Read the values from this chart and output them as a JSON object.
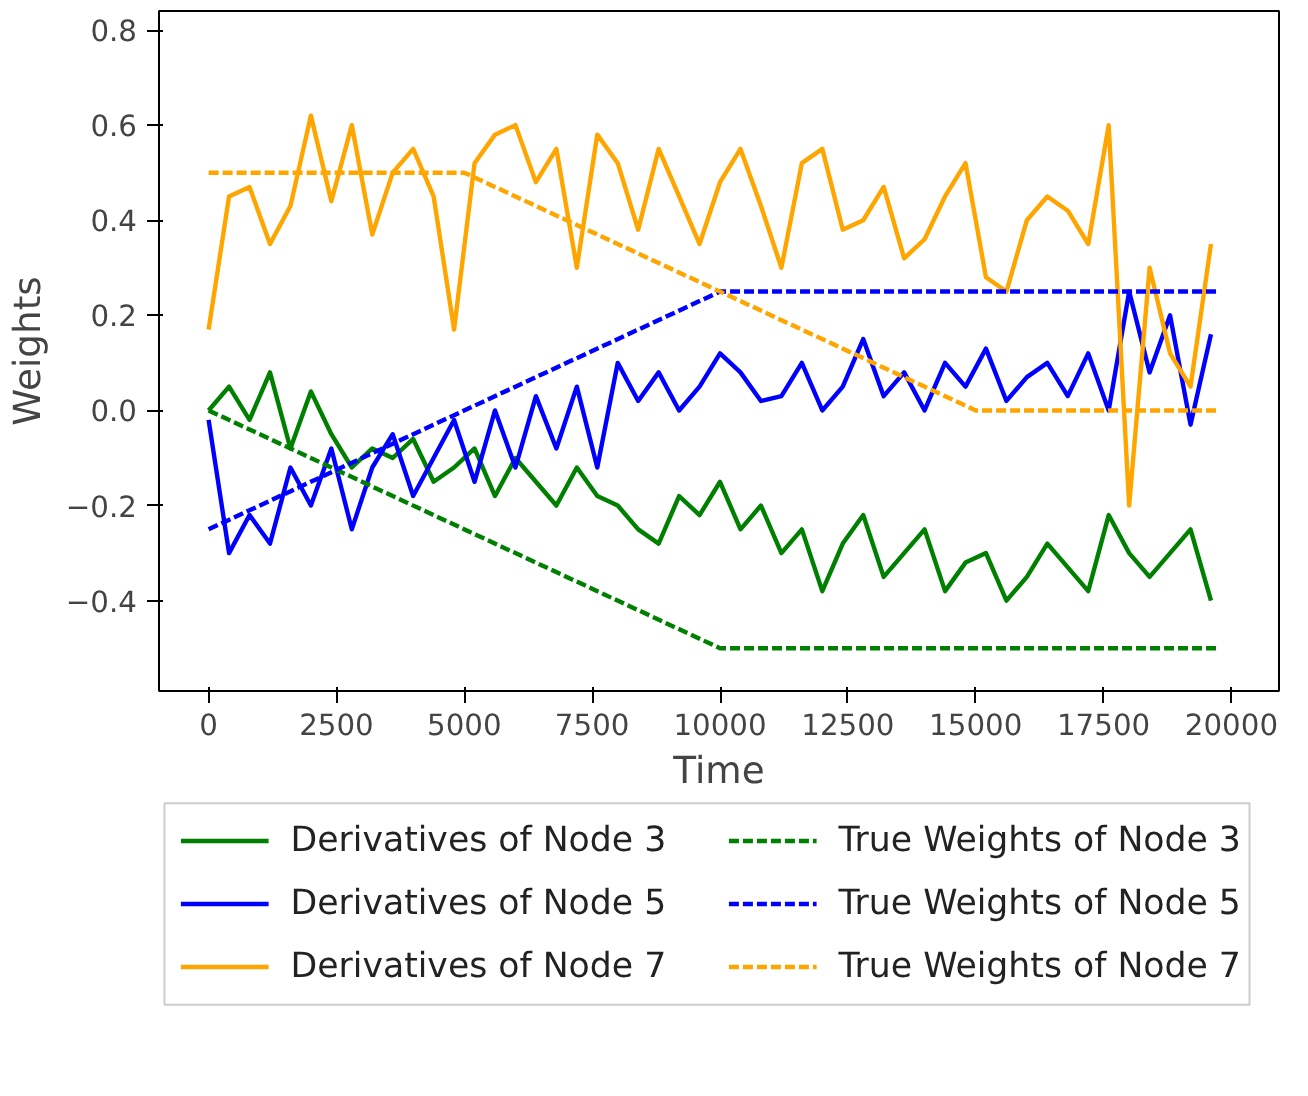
{
  "chart_data": {
    "type": "line",
    "xlabel": "Time",
    "ylabel": "Weights",
    "xlim": [
      -970,
      20930
    ],
    "ylim": [
      -0.59,
      0.84
    ],
    "xticks": [
      0,
      2500,
      5000,
      7500,
      10000,
      12500,
      15000,
      17500,
      20000
    ],
    "yticks": [
      {
        "value": -0.4,
        "label": "−0.4"
      },
      {
        "value": -0.2,
        "label": "−0.2"
      },
      {
        "value": 0,
        "label": "0.0"
      },
      {
        "value": 0.2,
        "label": "0.2"
      },
      {
        "value": 0.4,
        "label": "0.4"
      },
      {
        "value": 0.6,
        "label": "0.6"
      },
      {
        "value": 0.8,
        "label": "0.8"
      }
    ],
    "grid": false,
    "legend": "bottom",
    "x": [
      0,
      400,
      800,
      1200,
      1600,
      2000,
      2400,
      2800,
      3200,
      3600,
      4000,
      4400,
      4800,
      5200,
      5600,
      6000,
      6400,
      6800,
      7200,
      7600,
      8000,
      8400,
      8800,
      9200,
      9600,
      10000,
      10400,
      10800,
      11200,
      11600,
      12000,
      12400,
      12800,
      13200,
      13600,
      14000,
      14400,
      14800,
      15200,
      15600,
      16000,
      16400,
      16800,
      17200,
      17600,
      18000,
      18400,
      18800,
      19200,
      19600
    ],
    "series": [
      {
        "name": "Derivatives of Node 3",
        "color": "#008000",
        "line_style": "solid",
        "values": [
          0.0,
          0.05,
          -0.02,
          0.08,
          -0.08,
          0.04,
          -0.05,
          -0.12,
          -0.08,
          -0.1,
          -0.06,
          -0.15,
          -0.12,
          -0.08,
          -0.18,
          -0.1,
          -0.15,
          -0.2,
          -0.12,
          -0.18,
          -0.2,
          -0.25,
          -0.28,
          -0.18,
          -0.22,
          -0.15,
          -0.25,
          -0.2,
          -0.3,
          -0.25,
          -0.38,
          -0.28,
          -0.22,
          -0.35,
          -0.3,
          -0.25,
          -0.38,
          -0.32,
          -0.3,
          -0.4,
          -0.35,
          -0.28,
          -0.33,
          -0.38,
          -0.22,
          -0.3,
          -0.35,
          -0.3,
          -0.25,
          -0.4
        ]
      },
      {
        "name": "Derivatives of Node 5",
        "color": "#0000ff",
        "line_style": "solid",
        "values": [
          -0.02,
          -0.3,
          -0.22,
          -0.28,
          -0.12,
          -0.2,
          -0.08,
          -0.25,
          -0.12,
          -0.05,
          -0.18,
          -0.1,
          -0.02,
          -0.15,
          0.0,
          -0.12,
          0.03,
          -0.08,
          0.05,
          -0.12,
          0.1,
          0.02,
          0.08,
          0.0,
          0.05,
          0.12,
          0.08,
          0.02,
          0.03,
          0.1,
          0.0,
          0.05,
          0.15,
          0.03,
          0.08,
          0.0,
          0.1,
          0.05,
          0.13,
          0.02,
          0.07,
          0.1,
          0.03,
          0.12,
          0.0,
          0.25,
          0.08,
          0.2,
          -0.03,
          0.16
        ]
      },
      {
        "name": "Derivatives of Node 7",
        "color": "#ffa500",
        "line_style": "solid",
        "values": [
          0.17,
          0.45,
          0.47,
          0.35,
          0.43,
          0.62,
          0.44,
          0.6,
          0.37,
          0.5,
          0.55,
          0.45,
          0.17,
          0.52,
          0.58,
          0.6,
          0.48,
          0.55,
          0.3,
          0.58,
          0.52,
          0.38,
          0.55,
          0.45,
          0.35,
          0.48,
          0.55,
          0.43,
          0.3,
          0.52,
          0.55,
          0.38,
          0.4,
          0.47,
          0.32,
          0.36,
          0.45,
          0.52,
          0.28,
          0.25,
          0.4,
          0.45,
          0.42,
          0.35,
          0.6,
          -0.2,
          0.3,
          0.12,
          0.05,
          0.35
        ]
      },
      {
        "name": "True Weights of Node 3",
        "color": "#008000",
        "line_style": "dashed",
        "x": [
          0,
          10000,
          19700
        ],
        "values": [
          0,
          -0.5,
          -0.5
        ]
      },
      {
        "name": "True Weights of Node 5",
        "color": "#0000ff",
        "line_style": "dashed",
        "x": [
          0,
          10000,
          19700
        ],
        "values": [
          -0.25,
          0.25,
          0.25
        ]
      },
      {
        "name": "True Weights of Node 7",
        "color": "#ffa500",
        "line_style": "dashed",
        "x": [
          0,
          5000,
          15000,
          19700
        ],
        "values": [
          0.5,
          0.5,
          0,
          0
        ]
      }
    ]
  }
}
